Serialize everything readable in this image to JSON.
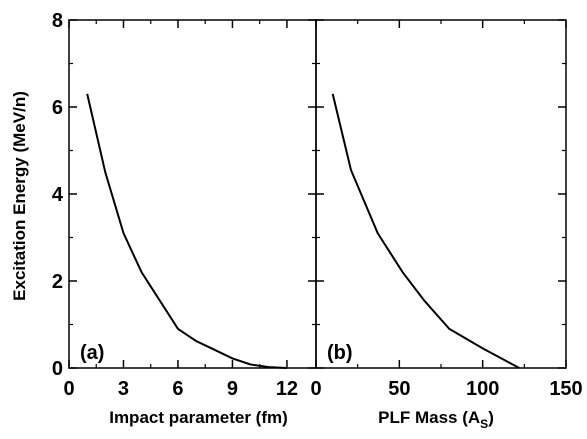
{
  "chart_data": [
    {
      "type": "line",
      "panel_label": "(a)",
      "xlabel": "Impact parameter (fm)",
      "ylabel": "Excitation Energy (MeV/n)",
      "xlim": [
        0,
        13.6
      ],
      "ylim": [
        0,
        8
      ],
      "x_ticks": [
        0,
        3,
        6,
        9,
        12
      ],
      "y_ticks": [
        0,
        2,
        4,
        6,
        8
      ],
      "grid": false,
      "series": [
        {
          "x": [
            1.0,
            2.0,
            3.0,
            4.0,
            5.0,
            6.0,
            7.0,
            8.0,
            9.0,
            10.0,
            11.0,
            12.0
          ],
          "y": [
            6.3,
            4.5,
            3.1,
            2.2,
            1.55,
            0.9,
            0.62,
            0.42,
            0.22,
            0.08,
            0.02,
            0.0
          ]
        }
      ]
    },
    {
      "type": "line",
      "panel_label": "(b)",
      "xlabel": "PLF Mass (A",
      "xlabel_sub": "S",
      "xlabel_close": ")",
      "ylabel": "",
      "xlim": [
        0,
        150
      ],
      "ylim": [
        0,
        8
      ],
      "x_ticks": [
        0,
        50,
        100,
        150
      ],
      "y_ticks": [
        0,
        2,
        4,
        6,
        8
      ],
      "grid": false,
      "series": [
        {
          "x": [
            10,
            21,
            37,
            52,
            65,
            80,
            100,
            122
          ],
          "y": [
            6.3,
            4.55,
            3.1,
            2.2,
            1.55,
            0.9,
            0.45,
            0.0
          ]
        }
      ]
    }
  ]
}
